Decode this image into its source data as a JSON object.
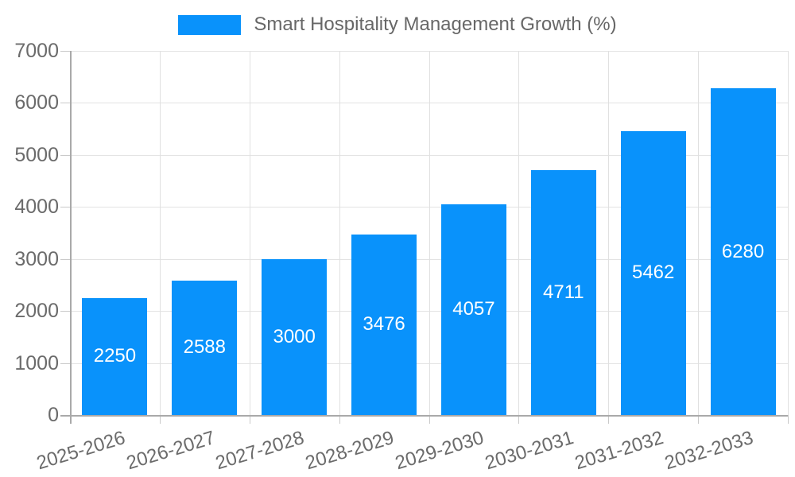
{
  "chart_data": {
    "type": "bar",
    "title": "Smart Hospitality Management Growth (%)",
    "categories": [
      "2025-2026",
      "2026-2027",
      "2027-2028",
      "2028-2029",
      "2029-2030",
      "2030-2031",
      "2031-2032",
      "2032-2033"
    ],
    "values": [
      2250,
      2588,
      3000,
      3476,
      4057,
      4711,
      5462,
      6280
    ],
    "xlabel": "",
    "ylabel": "",
    "ylim": [
      0,
      7000
    ],
    "ytick_step": 1000,
    "y_tick_labels": [
      "0",
      "1000",
      "2000",
      "3000",
      "4000",
      "5000",
      "6000",
      "7000"
    ],
    "grid": "both",
    "legend_position": "top-center",
    "bar_labels_position": "inside-center",
    "colors": {
      "bar": "#0992fb",
      "bar_value_text": "#ffffff",
      "grid": "#e3e3e3",
      "axis": "#a9a9a9",
      "tick": "#c9c9c9",
      "tick_text": "#6b6b6b",
      "title_text": "#676767",
      "background": "#ffffff"
    }
  }
}
